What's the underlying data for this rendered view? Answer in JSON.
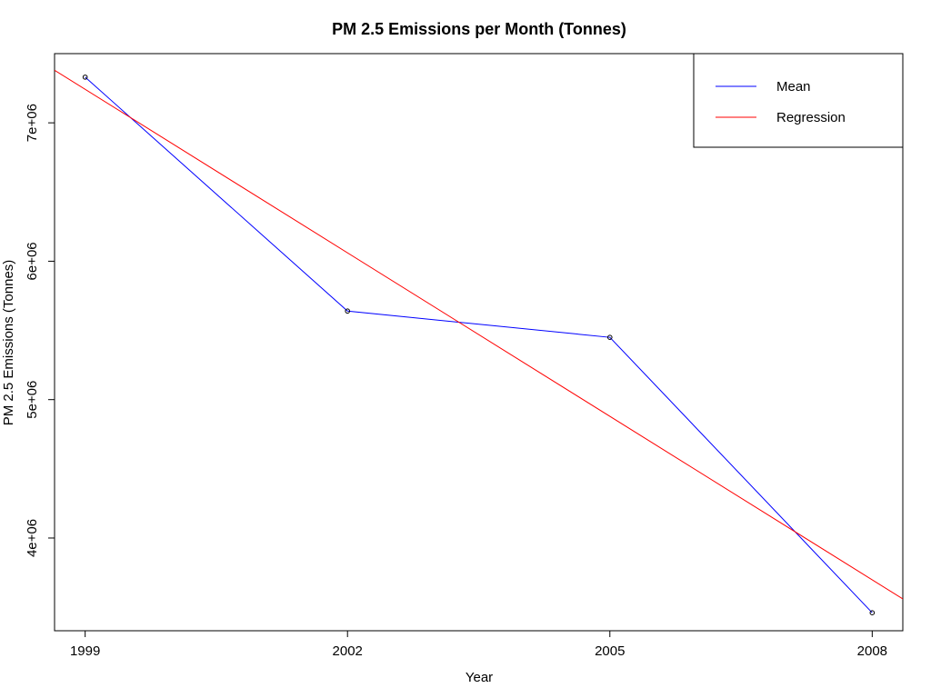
{
  "chart_data": {
    "type": "line",
    "title": "PM 2.5 Emissions per Month (Tonnes)",
    "xlabel": "Year",
    "ylabel": "PM 2.5 Emissions (Tonnes)",
    "x_ticks": [
      1999,
      2002,
      2005,
      2008
    ],
    "x_tick_labels": [
      "1999",
      "2002",
      "2005",
      "2008"
    ],
    "y_ticks": [
      4000000,
      5000000,
      6000000,
      7000000
    ],
    "y_tick_labels": [
      "4e+06",
      "5e+06",
      "6e+06",
      "7e+06"
    ],
    "xlim": [
      1998.65,
      2008.35
    ],
    "ylim": [
      3330000,
      7500000
    ],
    "grid": false,
    "legend_position": "top-right",
    "series": [
      {
        "name": "Mean",
        "color": "#0000ff",
        "markers": true,
        "x": [
          1999,
          2002,
          2005,
          2008
        ],
        "y": [
          7330000,
          5640000,
          5450000,
          3460000
        ]
      },
      {
        "name": "Regression",
        "color": "#ff0000",
        "markers": false,
        "x": [
          1998.65,
          2008.35
        ],
        "y": [
          7380000,
          3560000
        ]
      }
    ]
  }
}
